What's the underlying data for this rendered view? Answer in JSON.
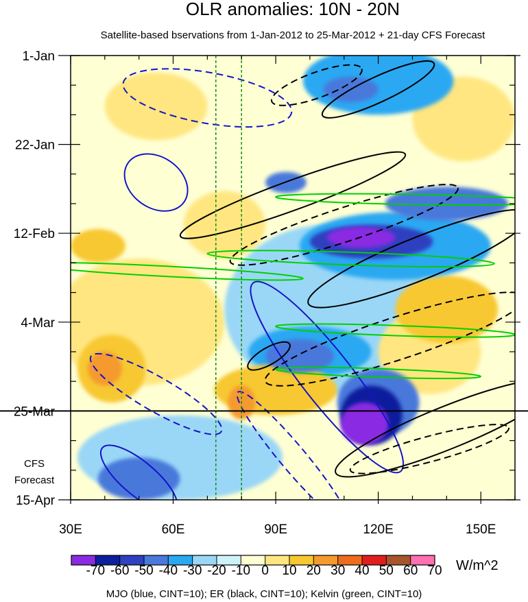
{
  "chart_data": {
    "type": "heatmap",
    "title": "OLR anomalies: 10N - 20N",
    "subtitle": "Satellite-based bservations from 1-Jan-2012 to 25-Mar-2012 + 21-day CFS Forecast",
    "x_axis": {
      "range": [
        30,
        160
      ],
      "ticks": [
        {
          "value": 30,
          "label": "30E"
        },
        {
          "value": 60,
          "label": "60E"
        },
        {
          "value": 90,
          "label": "90E"
        },
        {
          "value": 120,
          "label": "120E"
        },
        {
          "value": 150,
          "label": "150E"
        }
      ]
    },
    "y_axis": {
      "range_days": [
        0,
        105
      ],
      "ticks": [
        {
          "day": 0,
          "label": "1-Jan"
        },
        {
          "day": 21,
          "label": "22-Jan"
        },
        {
          "day": 42,
          "label": "12-Feb"
        },
        {
          "day": 63,
          "label": "4-Mar"
        },
        {
          "day": 84,
          "label": "25-Mar"
        },
        {
          "day": 105,
          "label": "15-Apr"
        }
      ]
    },
    "forecast_start_day": 84,
    "forecast_label": [
      "CFS",
      "Forecast"
    ],
    "reference_longitudes": [
      72.5,
      80
    ],
    "colorbar": {
      "unit": "W/m^2",
      "levels": [
        "-70",
        "-60",
        "-50",
        "-40",
        "-30",
        "-20",
        "-10",
        "0",
        "10",
        "20",
        "30",
        "40",
        "50",
        "60",
        "70"
      ],
      "colors": [
        "#8a2be2",
        "#0c1f9c",
        "#2f40c0",
        "#4a78db",
        "#2aa8f2",
        "#9ad7f6",
        "#cdf3f9",
        "#ffffd4",
        "#ffe680",
        "#f7c830",
        "#f59a2e",
        "#ef6b1e",
        "#e01e1e",
        "#a8542c",
        "#ff6fb1"
      ]
    },
    "anomaly_regions": [
      {
        "lon": 116,
        "day": 87,
        "rx": 7,
        "ry": 5,
        "value": -65
      },
      {
        "lon": 118,
        "day": 85,
        "rx": 9,
        "ry": 7,
        "value": -50
      },
      {
        "lon": 120,
        "day": 82,
        "rx": 12,
        "ry": 8,
        "value": -35
      },
      {
        "lon": 115,
        "day": 43,
        "rx": 10,
        "ry": 2.5,
        "value": -60
      },
      {
        "lon": 118,
        "day": 44,
        "rx": 18,
        "ry": 4,
        "value": -40
      },
      {
        "lon": 125,
        "day": 45,
        "rx": 28,
        "ry": 8,
        "value": -25
      },
      {
        "lon": 112,
        "day": 8,
        "rx": 8,
        "ry": 3,
        "value": -35
      },
      {
        "lon": 120,
        "day": 6,
        "rx": 22,
        "ry": 8,
        "value": -20
      },
      {
        "lon": 97,
        "day": 71,
        "rx": 10,
        "ry": 4,
        "value": -30
      },
      {
        "lon": 100,
        "day": 70,
        "rx": 18,
        "ry": 6,
        "value": -20
      },
      {
        "lon": 105,
        "day": 60,
        "rx": 30,
        "ry": 20,
        "value": -15
      },
      {
        "lon": 62,
        "day": 95,
        "rx": 30,
        "ry": 10,
        "value": -15
      },
      {
        "lon": 50,
        "day": 100,
        "rx": 12,
        "ry": 5,
        "value": -35
      },
      {
        "lon": 93,
        "day": 30,
        "rx": 6,
        "ry": 2.5,
        "value": -35
      },
      {
        "lon": 140,
        "day": 35,
        "rx": 18,
        "ry": 4,
        "value": -30
      },
      {
        "lon": 40,
        "day": 74,
        "rx": 5,
        "ry": 4,
        "value": 35
      },
      {
        "lon": 42,
        "day": 74,
        "rx": 10,
        "ry": 8,
        "value": 20
      },
      {
        "lon": 38,
        "day": 45,
        "rx": 8,
        "ry": 4,
        "value": 25
      },
      {
        "lon": 90,
        "day": 79,
        "rx": 18,
        "ry": 6,
        "value": 20
      },
      {
        "lon": 80,
        "day": 82,
        "rx": 4,
        "ry": 4,
        "value": 30
      },
      {
        "lon": 140,
        "day": 60,
        "rx": 15,
        "ry": 8,
        "value": 20
      },
      {
        "lon": 55,
        "day": 12,
        "rx": 15,
        "ry": 8,
        "value": 15
      },
      {
        "lon": 145,
        "day": 15,
        "rx": 15,
        "ry": 10,
        "value": 15
      },
      {
        "lon": 50,
        "day": 63,
        "rx": 25,
        "ry": 15,
        "value": 12
      },
      {
        "lon": 135,
        "day": 70,
        "rx": 15,
        "ry": 10,
        "value": 15
      },
      {
        "lon": 75,
        "day": 40,
        "rx": 12,
        "ry": 8,
        "value": 12
      }
    ],
    "contours": {
      "MJO": {
        "color": "#1414c8",
        "cint": 10
      },
      "ER": {
        "color": "#000000",
        "cint": 10
      },
      "Kelvin": {
        "color": "#00d000",
        "cint": 10
      }
    },
    "contour_shapes": [
      {
        "kind": "MJO",
        "dashed": false,
        "lon": 55,
        "day": 30,
        "rx": 10,
        "ry": 6,
        "angle": 35
      },
      {
        "kind": "MJO",
        "dashed": false,
        "lon": 105,
        "day": 76,
        "rx": 35,
        "ry": 6,
        "angle": 52
      },
      {
        "kind": "MJO",
        "dashed": false,
        "lon": 50,
        "day": 100,
        "rx": 14,
        "ry": 4,
        "angle": 40
      },
      {
        "kind": "MJO",
        "dashed": true,
        "lon": 70,
        "day": 10,
        "rx": 25,
        "ry": 6,
        "angle": 10
      },
      {
        "kind": "MJO",
        "dashed": true,
        "lon": 55,
        "day": 80,
        "rx": 22,
        "ry": 4,
        "angle": 30
      },
      {
        "kind": "MJO",
        "dashed": true,
        "lon": 95,
        "day": 95,
        "rx": 25,
        "ry": 3,
        "angle": 50
      },
      {
        "kind": "ER",
        "dashed": false,
        "lon": 120,
        "day": 8,
        "rx": 18,
        "ry": 3,
        "angle": -25
      },
      {
        "kind": "ER",
        "dashed": false,
        "lon": 95,
        "day": 33,
        "rx": 35,
        "ry": 3.5,
        "angle": -20
      },
      {
        "kind": "ER",
        "dashed": false,
        "lon": 132,
        "day": 48,
        "rx": 35,
        "ry": 5,
        "angle": -22
      },
      {
        "kind": "ER",
        "dashed": false,
        "lon": 140,
        "day": 88,
        "rx": 35,
        "ry": 5,
        "angle": -22
      },
      {
        "kind": "ER",
        "dashed": false,
        "lon": 88,
        "day": 71,
        "rx": 7,
        "ry": 2,
        "angle": -30
      },
      {
        "kind": "ER",
        "dashed": true,
        "lon": 102,
        "day": 7,
        "rx": 14,
        "ry": 3,
        "angle": -20
      },
      {
        "kind": "ER",
        "dashed": true,
        "lon": 110,
        "day": 40,
        "rx": 35,
        "ry": 4,
        "angle": -18
      },
      {
        "kind": "ER",
        "dashed": true,
        "lon": 125,
        "day": 67,
        "rx": 40,
        "ry": 5,
        "angle": -18
      },
      {
        "kind": "ER",
        "dashed": true,
        "lon": 135,
        "day": 93,
        "rx": 24,
        "ry": 3,
        "angle": -15
      },
      {
        "kind": "Kelvin",
        "dashed": false,
        "lon": 58,
        "day": 51,
        "rx": 40,
        "ry": 1.2,
        "angle": 3
      },
      {
        "kind": "Kelvin",
        "dashed": false,
        "lon": 112,
        "day": 48,
        "rx": 42,
        "ry": 1.5,
        "angle": 2
      },
      {
        "kind": "Kelvin",
        "dashed": false,
        "lon": 130,
        "day": 34,
        "rx": 40,
        "ry": 1.2,
        "angle": 1
      },
      {
        "kind": "Kelvin",
        "dashed": false,
        "lon": 125,
        "day": 65,
        "rx": 35,
        "ry": 1.2,
        "angle": 2
      },
      {
        "kind": "Kelvin",
        "dashed": false,
        "lon": 120,
        "day": 75,
        "rx": 30,
        "ry": 1,
        "angle": 2
      }
    ],
    "footer": "MJO (blue, CINT=10); ER (black, CINT=10); Kelvin (green, CINT=10)"
  }
}
